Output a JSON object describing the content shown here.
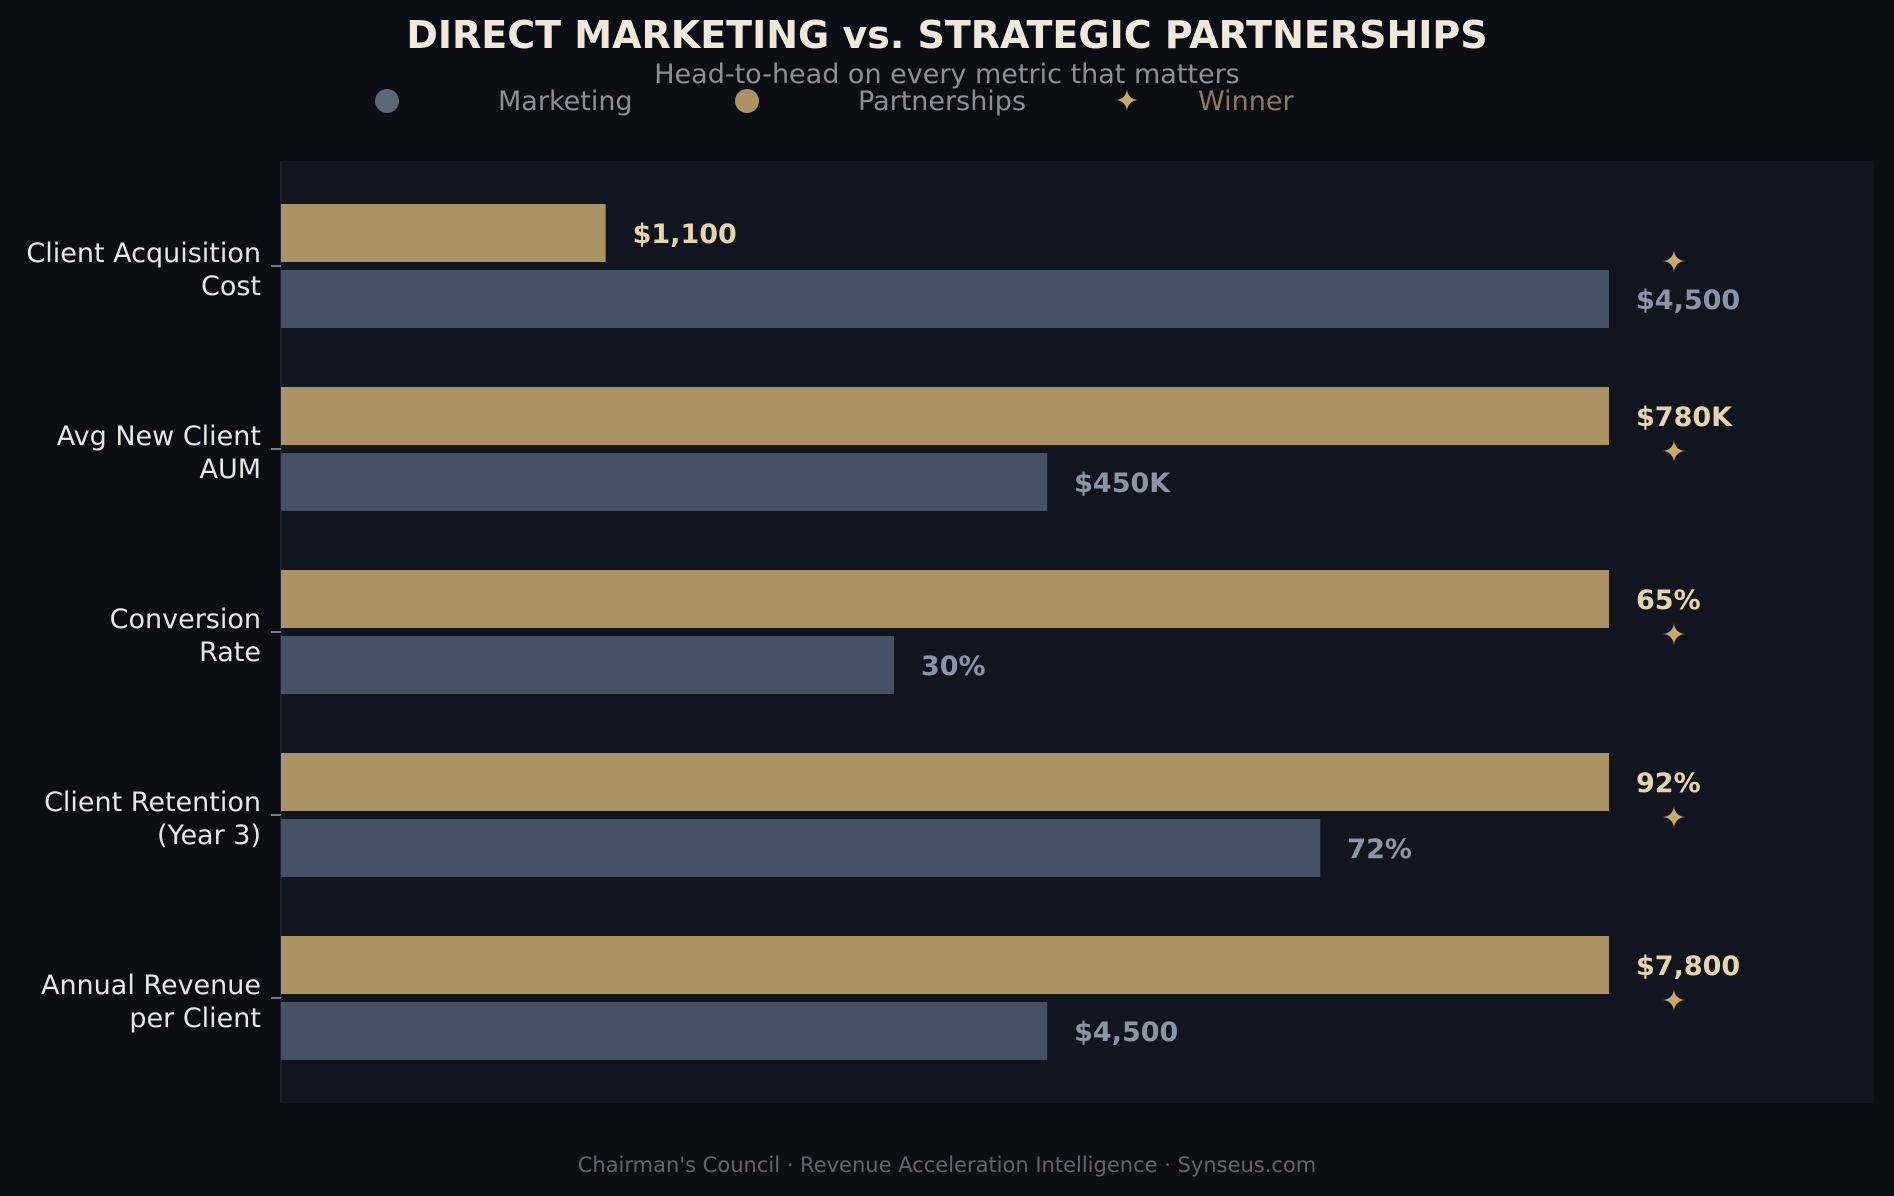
{
  "title": "DIRECT MARKETING  vs.  STRATEGIC PARTNERSHIPS",
  "subtitle": "Head-to-head on every metric that matters",
  "footer": "Chairman's Council  ·  Revenue Acceleration Intelligence  ·  Synseus.com",
  "legend": {
    "marketing": "Marketing",
    "partnerships": "Partnerships",
    "winner": "Winner",
    "star_glyph": "✦"
  },
  "colors": {
    "background": "#0b0e15",
    "plot_background": "#11151f",
    "marketing": "#445264",
    "marketing_label": "#8896a8",
    "marketing_legend": "#5c687a",
    "partnerships": "#ab9363",
    "partnerships_label": "#e6d4ab",
    "winner": "#c9a96b",
    "winner_text": "#8f7a52"
  },
  "chart_data": {
    "type": "bar",
    "orientation": "horizontal",
    "note_scale": "bars normalized per metric (largest value = full length)",
    "categories": [
      [
        "Client Acquisition",
        "Cost"
      ],
      [
        "Avg New Client",
        "AUM"
      ],
      [
        "Conversion",
        "Rate"
      ],
      [
        "Client Retention",
        "(Year 3)"
      ],
      [
        "Annual Revenue",
        "per Client"
      ]
    ],
    "series": [
      {
        "name": "Partnerships",
        "values": [
          1100,
          780000,
          65,
          92,
          7800
        ],
        "labels": [
          "$1,100",
          "$780K",
          "65%",
          "92%",
          "$7,800"
        ]
      },
      {
        "name": "Marketing",
        "values": [
          4500,
          450000,
          30,
          72,
          4500
        ],
        "labels": [
          "$4,500",
          "$450K",
          "30%",
          "72%",
          "$4,500"
        ]
      }
    ],
    "winner_star_on": [
      "Marketing",
      "Partnerships",
      "Partnerships",
      "Partnerships",
      "Partnerships"
    ],
    "grid": false,
    "legend_position": "top"
  }
}
